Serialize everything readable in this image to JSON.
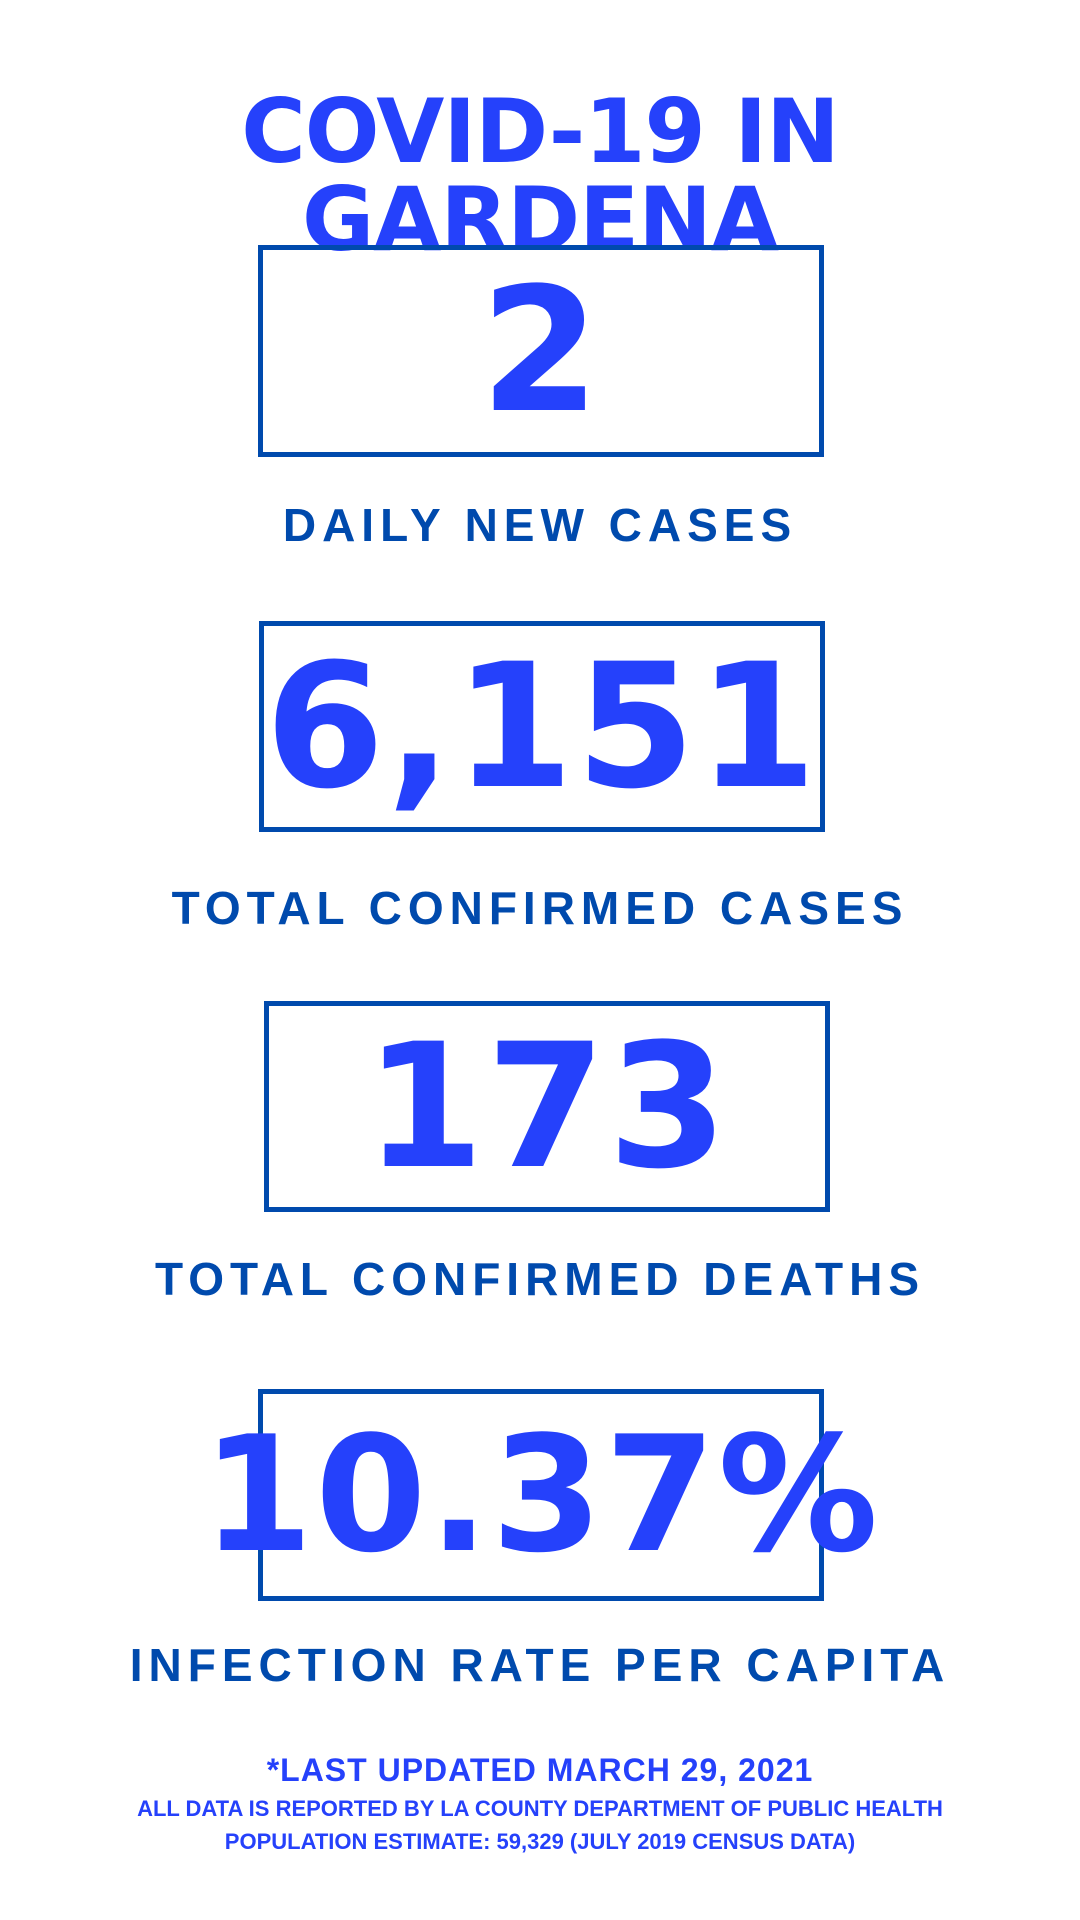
{
  "title": "COVID-19 IN GARDENA",
  "stats": [
    {
      "value": "2",
      "label": "DAILY NEW CASES"
    },
    {
      "value": "6,151",
      "label": "TOTAL CONFIRMED CASES"
    },
    {
      "value": "173",
      "label": "TOTAL CONFIRMED DEATHS"
    },
    {
      "value": "10.37%",
      "label": "INFECTION RATE PER CAPITA"
    }
  ],
  "footer": {
    "updated": "*LAST UPDATED MARCH 29, 2021",
    "source": "ALL DATA IS REPORTED BY LA COUNTY DEPARTMENT OF PUBLIC HEALTH",
    "population": "POPULATION ESTIMATE: 59,329 (JULY 2019 CENSUS DATA)"
  },
  "colors": {
    "accent": "#2541fb",
    "border": "#004aad"
  }
}
